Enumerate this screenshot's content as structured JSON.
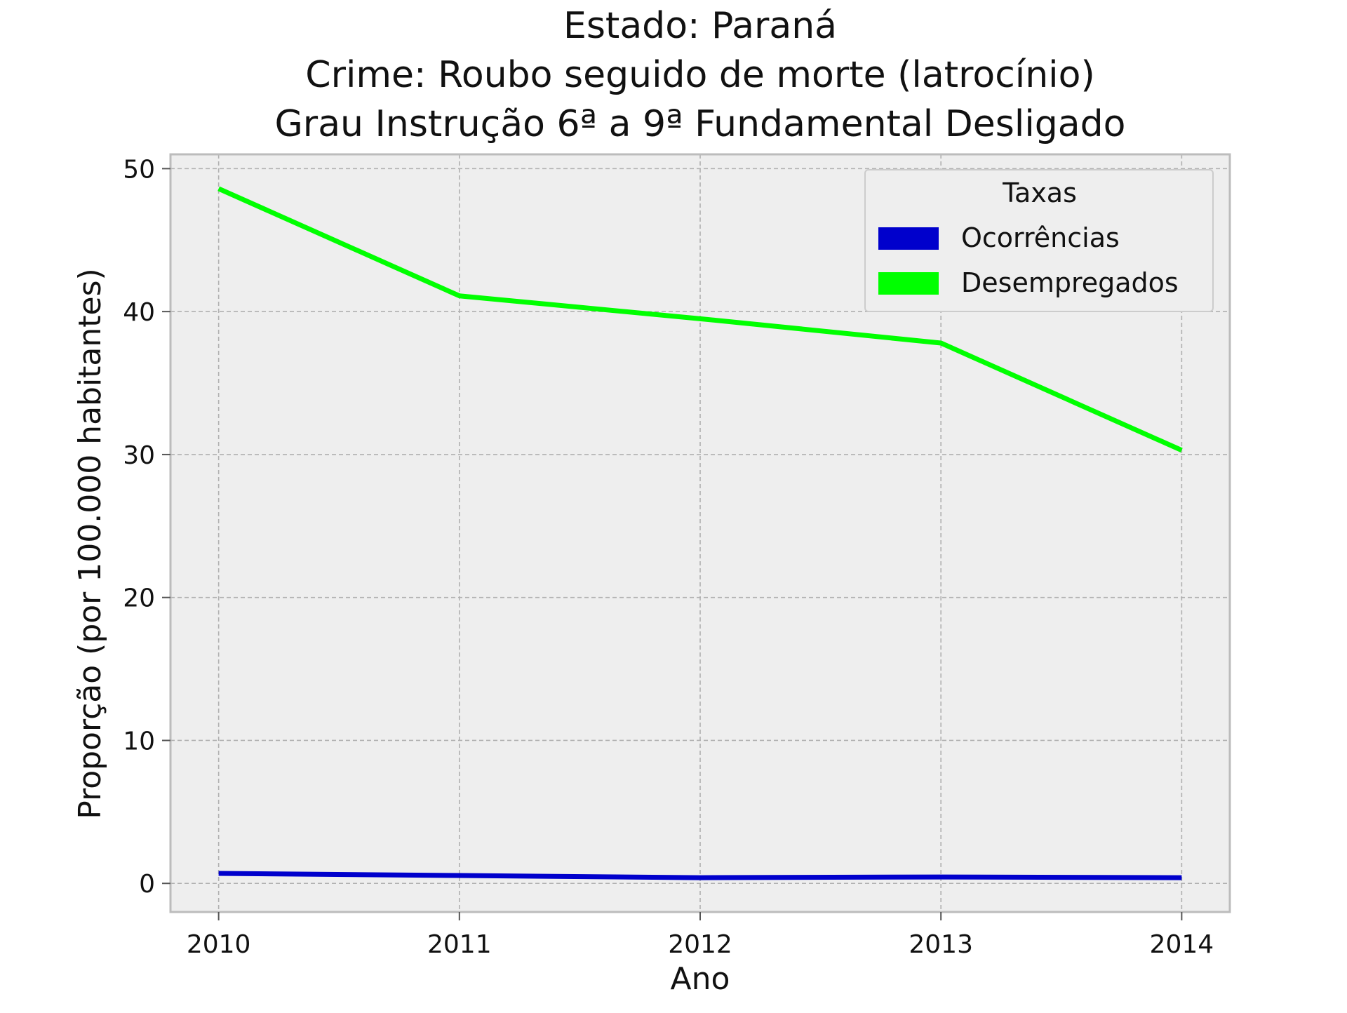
{
  "chart_data": {
    "type": "line",
    "title_lines": [
      "Estado: Paraná",
      "Crime: Roubo seguido de morte (latrocínio)",
      "Grau Instrução  6ª a 9ª Fundamental   Desligado"
    ],
    "xlabel": "Ano",
    "ylabel": "Proporção (por 100.000 habitantes)",
    "x": [
      2010,
      2011,
      2012,
      2013,
      2014
    ],
    "x_tick_labels": [
      "2010",
      "2011",
      "2012",
      "2013",
      "2014"
    ],
    "xlim": [
      2009.8,
      2014.2
    ],
    "ylim": [
      -2,
      51
    ],
    "y_ticks": [
      0,
      10,
      20,
      30,
      40,
      50
    ],
    "y_tick_labels": [
      "0",
      "10",
      "20",
      "30",
      "40",
      "50"
    ],
    "grid": true,
    "legend": {
      "title": "Taxas",
      "placement": "top-right"
    },
    "series": [
      {
        "name": "Ocorrências",
        "color": "#0000cc",
        "values": [
          0.7,
          0.55,
          0.4,
          0.45,
          0.4
        ]
      },
      {
        "name": "Desempregados",
        "color": "#00ff00",
        "values": [
          48.6,
          41.1,
          39.5,
          37.8,
          30.3
        ]
      }
    ]
  },
  "style": {
    "plot_background": "#eeeeee",
    "grid_color": "#b0b0b0",
    "frame_color": "#bcbcbc"
  }
}
